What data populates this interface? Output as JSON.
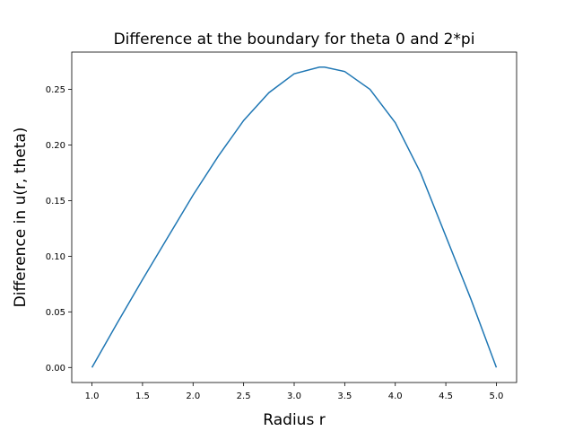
{
  "chart_data": {
    "type": "line",
    "title": "Difference at the boundary for theta 0 and 2*pi",
    "xlabel": "Radius r",
    "ylabel": "Difference in u(r, theta)",
    "xlim": [
      0.8,
      5.2
    ],
    "ylim": [
      -0.0135,
      0.2835
    ],
    "xticks": [
      1.0,
      1.5,
      2.0,
      2.5,
      3.0,
      3.5,
      4.0,
      4.5,
      5.0
    ],
    "xtick_labels": [
      "1.0",
      "1.5",
      "2.0",
      "2.5",
      "3.0",
      "3.5",
      "4.0",
      "4.5",
      "5.0"
    ],
    "yticks": [
      0.0,
      0.05,
      0.1,
      0.15,
      0.2,
      0.25
    ],
    "ytick_labels": [
      "0.00",
      "0.05",
      "0.10",
      "0.15",
      "0.20",
      "0.25"
    ],
    "grid": false,
    "line_color": "#1f77b4",
    "series": [
      {
        "x": [
          1.0,
          1.25,
          1.5,
          1.75,
          2.0,
          2.25,
          2.5,
          2.75,
          3.0,
          3.25,
          3.3,
          3.5,
          3.75,
          4.0,
          4.25,
          4.5,
          4.75,
          5.0
        ],
        "values": [
          0.0,
          0.04,
          0.079,
          0.117,
          0.155,
          0.19,
          0.222,
          0.247,
          0.264,
          0.27,
          0.27,
          0.266,
          0.25,
          0.22,
          0.175,
          0.118,
          0.061,
          0.0
        ]
      }
    ]
  }
}
